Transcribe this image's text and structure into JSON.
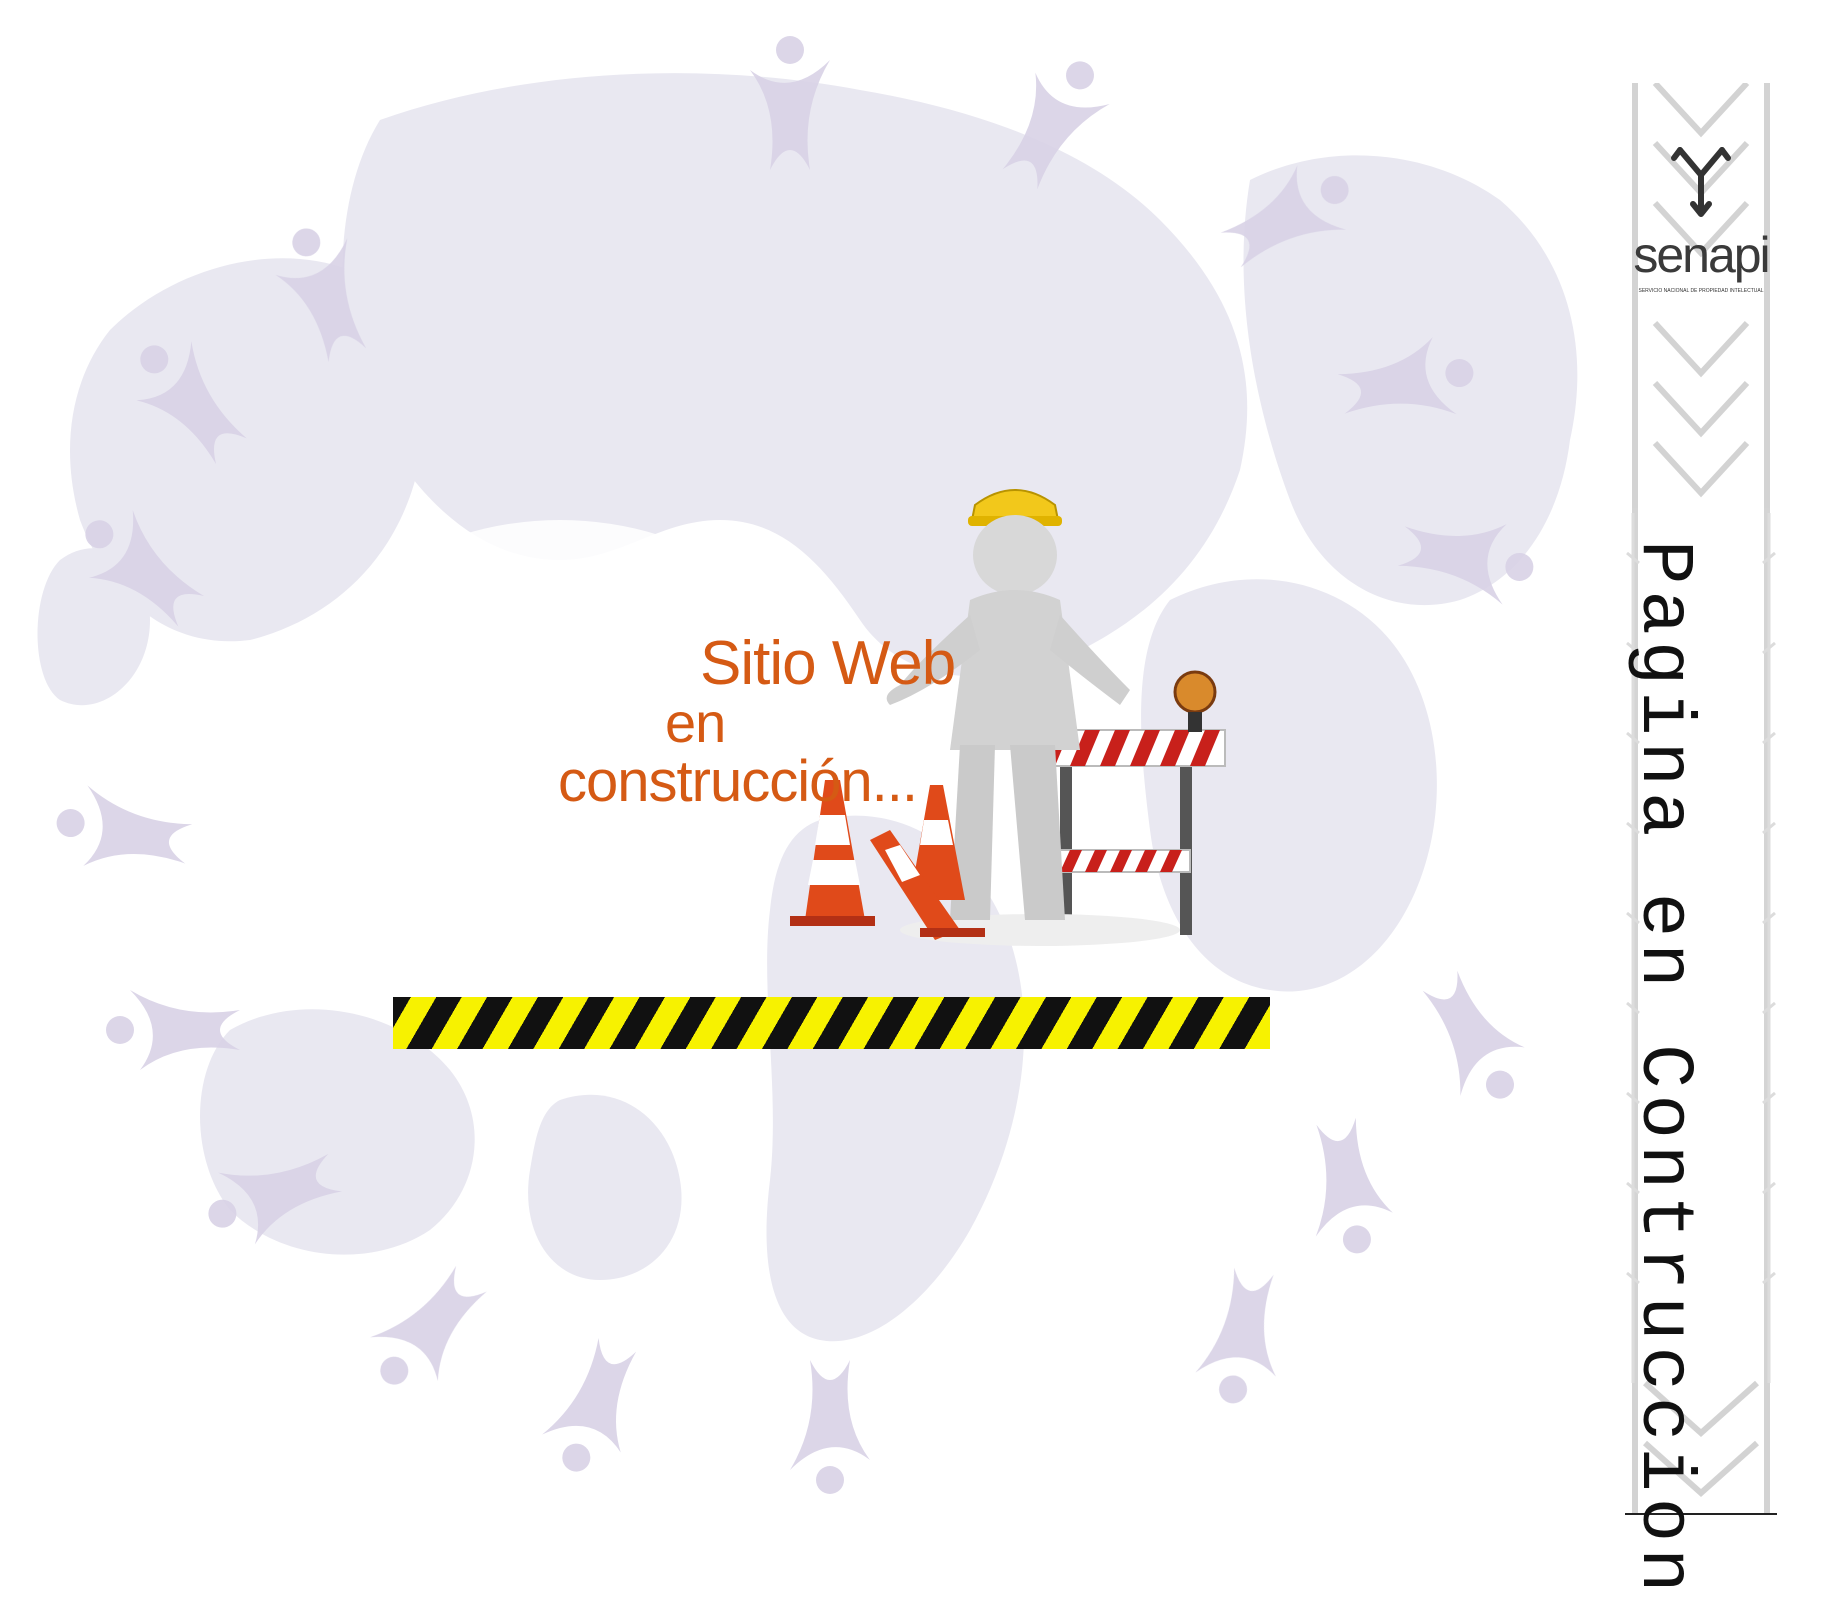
{
  "hero": {
    "line1": "Sitio Web",
    "line2": "en",
    "line3": "construcción..."
  },
  "sidebar": {
    "logo_name": "senapi",
    "logo_subtitle": "SERVICIO NACIONAL DE PROPIEDAD INTELECTUAL",
    "vertical_text": "Pagina en Contruccion"
  },
  "colors": {
    "hero_text": "#d55a14",
    "hazard_yellow": "#f7f200",
    "hazard_black": "#111111",
    "map": "#e9e8f1",
    "figure": "#d8d2e6"
  }
}
